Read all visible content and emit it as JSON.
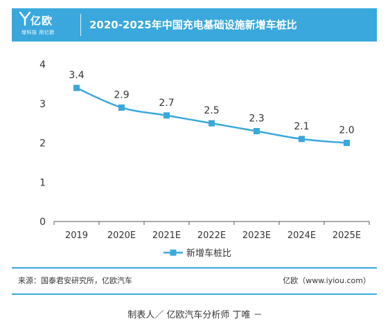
{
  "header": {
    "logo_text": "亿欧",
    "logo_slogan": "增科技 用亿欧",
    "title": "2020-2025年中国充电基础设施新增车桩比"
  },
  "chart_data": {
    "type": "line",
    "title": "2020-2025年中国充电基础设施新增车桩比",
    "categories": [
      "2019",
      "2020E",
      "2021E",
      "2022E",
      "2023E",
      "2024E",
      "2025E"
    ],
    "series": [
      {
        "name": "新增车桩比",
        "values": [
          3.4,
          2.9,
          2.7,
          2.5,
          2.3,
          2.1,
          2.0
        ],
        "color": "#3aa8dc"
      }
    ],
    "data_labels": [
      "3.4",
      "2.9",
      "2.7",
      "2.5",
      "2.3",
      "2.1",
      "2.0"
    ],
    "ylim": [
      0,
      4
    ],
    "yticks": [
      "0",
      "1",
      "2",
      "3",
      "4"
    ],
    "xlabel": "",
    "ylabel": "",
    "grid": false,
    "legend_position": "bottom-center"
  },
  "footer": {
    "source": "来源：国泰君安研究所，亿欧汽车",
    "site": "亿欧（www.iyiou.com）",
    "credit": "制表人／ 亿欧汽车分析师 丁唯 －"
  },
  "colors": {
    "accent": "#3aa8dc",
    "axis": "#555555"
  }
}
